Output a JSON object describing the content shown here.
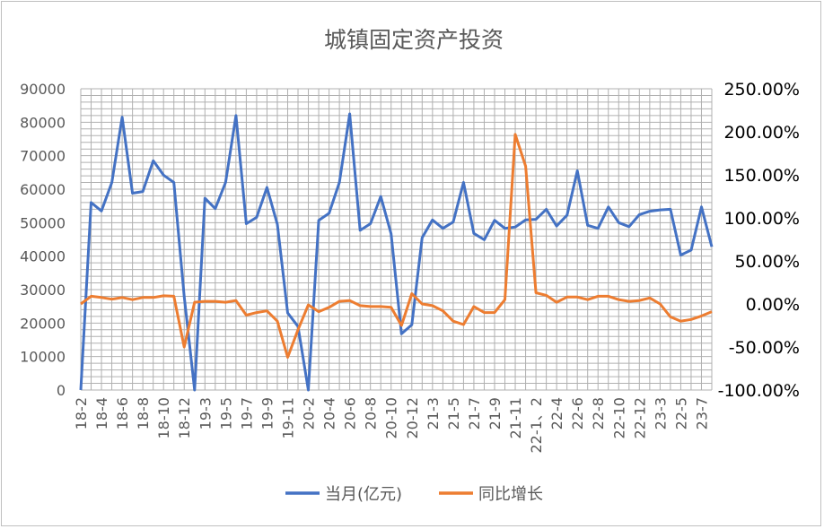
{
  "chart_data": {
    "type": "line",
    "title": "城镇固定资产投资",
    "xlabel": "",
    "ylabel": "",
    "ylim": [
      0,
      90000
    ],
    "y2lim": [
      -1.0,
      2.5
    ],
    "y_ticks": [
      "0",
      "10000",
      "20000",
      "30000",
      "40000",
      "50000",
      "60000",
      "70000",
      "80000",
      "90000"
    ],
    "y2_ticks": [
      "-100.00%",
      "-50.00%",
      "0.00%",
      "50.00%",
      "100.00%",
      "150.00%",
      "200.00%",
      "250.00%"
    ],
    "grid": true,
    "legend_position": "bottom",
    "x_tick_labels": [
      "18-2",
      "18-4",
      "18-6",
      "18-8",
      "18-10",
      "18-12",
      "19-3",
      "19-5",
      "19-7",
      "19-9",
      "19-11",
      "20-2",
      "20-4",
      "20-6",
      "20-8",
      "20-10",
      "20-12",
      "21-3",
      "21-5",
      "21-7",
      "21-9",
      "21-11",
      "22-1、2",
      "22-4",
      "22-6",
      "22-8",
      "22-10",
      "22-12",
      "23-3",
      "22-5",
      "23-7"
    ],
    "series": [
      {
        "name": "当月(亿元)",
        "color": "#4472c4",
        "axis": "left",
        "values": [
          0,
          56000,
          53500,
          62000,
          81500,
          58800,
          59300,
          68500,
          64200,
          62000,
          28000,
          0,
          57300,
          54200,
          62000,
          82000,
          49700,
          51600,
          60500,
          49500,
          23000,
          19000,
          0,
          50700,
          52800,
          62000,
          82500,
          47700,
          49700,
          57800,
          46700,
          16800,
          19500,
          45500,
          50800,
          48300,
          50200,
          62000,
          46800,
          44900,
          50700,
          48300,
          48700,
          50800,
          51000,
          54000,
          49000,
          52200,
          65500,
          49200,
          48300,
          54700,
          50000,
          48800,
          52400,
          53400,
          53800,
          54000,
          40300,
          41800,
          54700,
          42800
        ]
      },
      {
        "name": "同比增长",
        "color": "#ed7d31",
        "axis": "right",
        "values": [
          0.0,
          0.09,
          0.075,
          0.055,
          0.075,
          0.05,
          0.075,
          0.075,
          0.095,
          0.09,
          -0.5,
          0.02,
          0.03,
          0.03,
          0.02,
          0.04,
          -0.13,
          -0.1,
          -0.08,
          -0.2,
          -0.62,
          -0.3,
          -0.01,
          -0.09,
          -0.04,
          0.03,
          0.04,
          -0.02,
          -0.03,
          -0.03,
          -0.04,
          -0.25,
          0.12,
          0.0,
          -0.02,
          -0.08,
          -0.2,
          -0.24,
          -0.03,
          -0.1,
          -0.1,
          0.05,
          1.97,
          1.6,
          0.13,
          0.1,
          0.02,
          0.08,
          0.08,
          0.05,
          0.09,
          0.09,
          0.05,
          0.03,
          0.04,
          0.07,
          0.0,
          -0.15,
          -0.2,
          -0.18,
          -0.14,
          -0.09
        ]
      }
    ]
  }
}
